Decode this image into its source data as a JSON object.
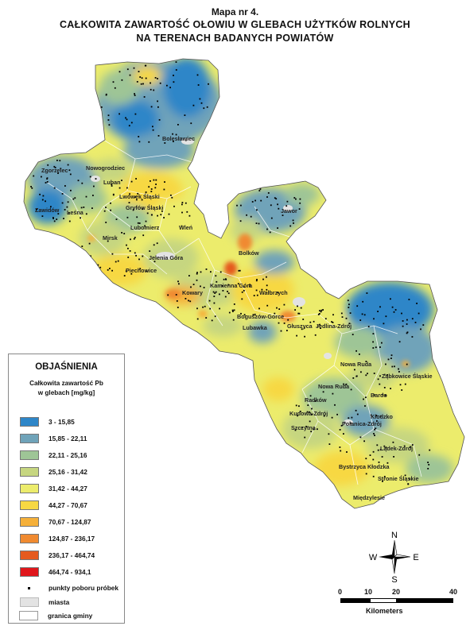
{
  "title": {
    "line1": "Mapa nr 4.",
    "line2": "CAŁKOWITA  ZAWARTOŚĆ  OŁOWIU  W  GLEBACH UŻYTKÓW  ROLNYCH",
    "line3": "NA  TERENACH  BADANYCH POWIATÓW"
  },
  "legend": {
    "heading": "OBJAŚNIENIA",
    "subtitle1": "Całkowita zawartość Pb",
    "subtitle2": "w glebach [mg/kg]",
    "classes": [
      {
        "label": "3 - 15,85",
        "color": "#2e86c8"
      },
      {
        "label": "15,85 - 22,11",
        "color": "#6fa3b9"
      },
      {
        "label": "22,11 - 25,16",
        "color": "#9ec596"
      },
      {
        "label": "25,16 - 31,42",
        "color": "#c6d680"
      },
      {
        "label": "31,42 - 44,27",
        "color": "#ecec6c"
      },
      {
        "label": "44,27 - 70,67",
        "color": "#f7d843"
      },
      {
        "label": "70,67 - 124,87",
        "color": "#f5b03a"
      },
      {
        "label": "124,87 - 236,17",
        "color": "#f08a30"
      },
      {
        "label": "236,17 - 464,74",
        "color": "#e55a1f"
      },
      {
        "label": "464,74 - 934,1",
        "color": "#e0161b"
      }
    ],
    "points_label": "punkty poboru próbek",
    "towns_label": "miasta",
    "towns_color": "#e3e3e3",
    "boundary_label": "granica gminy"
  },
  "compass": {
    "n": "N",
    "s": "S",
    "e": "E",
    "w": "W"
  },
  "scalebar": {
    "ticks": [
      "0",
      "10",
      "20",
      "40"
    ],
    "unit": "Kilometers"
  },
  "places": [
    "Bolesławiec",
    "Nowogrodziec",
    "Zgorzelec",
    "Luban",
    "Lwówek Śląski",
    "Gryfów Śląski",
    "Zawidów",
    "Leśna",
    "Lubomierz",
    "Wleń",
    "Mirsk",
    "Jelenia Góra",
    "Piechowice",
    "Bolków",
    "Jawor",
    "Kamienna Góra",
    "Kowary",
    "Wałbrzych",
    "Boguszów-Gorce",
    "Lubawka",
    "Głuszyca",
    "Jedlina-Zdrój",
    "Nowa Ruda",
    "Ząbkowice Śląskie",
    "Nowa Ruda",
    "Bardo",
    "Radków",
    "Kudowa-Zdrój",
    "Kłodzko",
    "Szczytna",
    "Polanica-Zdrój",
    "Lądek-Zdrój",
    "Bystrzyca Kłodzka",
    "Stronie Śląskie",
    "Międzylesie"
  ]
}
